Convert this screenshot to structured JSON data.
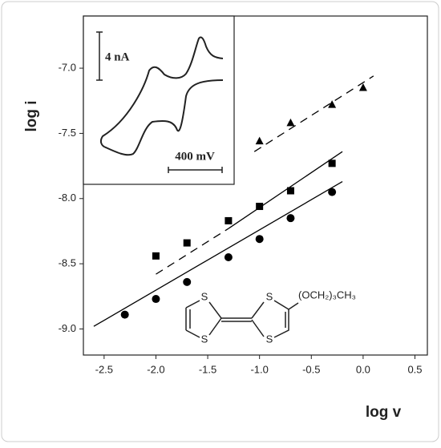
{
  "chart_data": {
    "type": "scatter",
    "x_label": "log v",
    "y_label": "log i",
    "xlim": [
      -2.7,
      0.62
    ],
    "ylim": [
      -9.2,
      -6.6
    ],
    "xticks": [
      -2.5,
      {
        "value": -2,
        "label": "-2.0"
      },
      -1.5,
      {
        "value": -1,
        "label": "-1.0"
      },
      -0.5,
      {
        "value": 0,
        "label": "0.0"
      },
      0.5
    ],
    "yticks": [
      {
        "value": -7,
        "label": "-7.0"
      },
      -7.5,
      {
        "value": -8,
        "label": "-8.0"
      },
      -8.5,
      {
        "value": -9,
        "label": "-9.0"
      }
    ],
    "series": [
      {
        "marker": "circle",
        "color": "#000000",
        "x": [
          -2.3,
          -2.0,
          -1.7,
          -1.3,
          -1.0,
          -0.7,
          -0.3
        ],
        "values": [
          -8.89,
          -8.77,
          -8.64,
          -8.45,
          -8.31,
          -8.15,
          -7.95
        ]
      },
      {
        "marker": "square",
        "color": "#000000",
        "x": [
          -2.0,
          -1.7,
          -1.3,
          -1.0,
          -0.7,
          -0.3
        ],
        "values": [
          -8.44,
          -8.34,
          -8.17,
          -8.06,
          -7.94,
          -7.73
        ]
      },
      {
        "marker": "triangle",
        "color": "#000000",
        "x": [
          -1.0,
          -0.7,
          -0.3,
          0.0
        ],
        "values": [
          -7.56,
          -7.42,
          -7.28,
          -7.15
        ]
      },
      {
        "line": "solid",
        "color": "#000000",
        "x": [
          -2.6,
          -0.2
        ],
        "values": [
          -8.98,
          -7.87
        ]
      },
      {
        "line": "dashed",
        "color": "#000000",
        "x": [
          -2.0,
          -1.3
        ],
        "values": [
          -8.58,
          -8.23
        ]
      },
      {
        "line": "solid",
        "color": "#000000",
        "x": [
          -1.3,
          -0.2
        ],
        "values": [
          -8.23,
          -7.64
        ]
      },
      {
        "line": "dashed",
        "color": "#000000",
        "x": [
          -1.05,
          0.1
        ],
        "values": [
          -7.64,
          -7.06
        ]
      }
    ],
    "inset": {
      "current_scale": "4 nA",
      "potential_scale": "400 mV"
    },
    "structure": {
      "atoms": [
        "S",
        "S",
        "S",
        "S"
      ],
      "substituent": "(OCH₂)₃CH₃"
    }
  }
}
